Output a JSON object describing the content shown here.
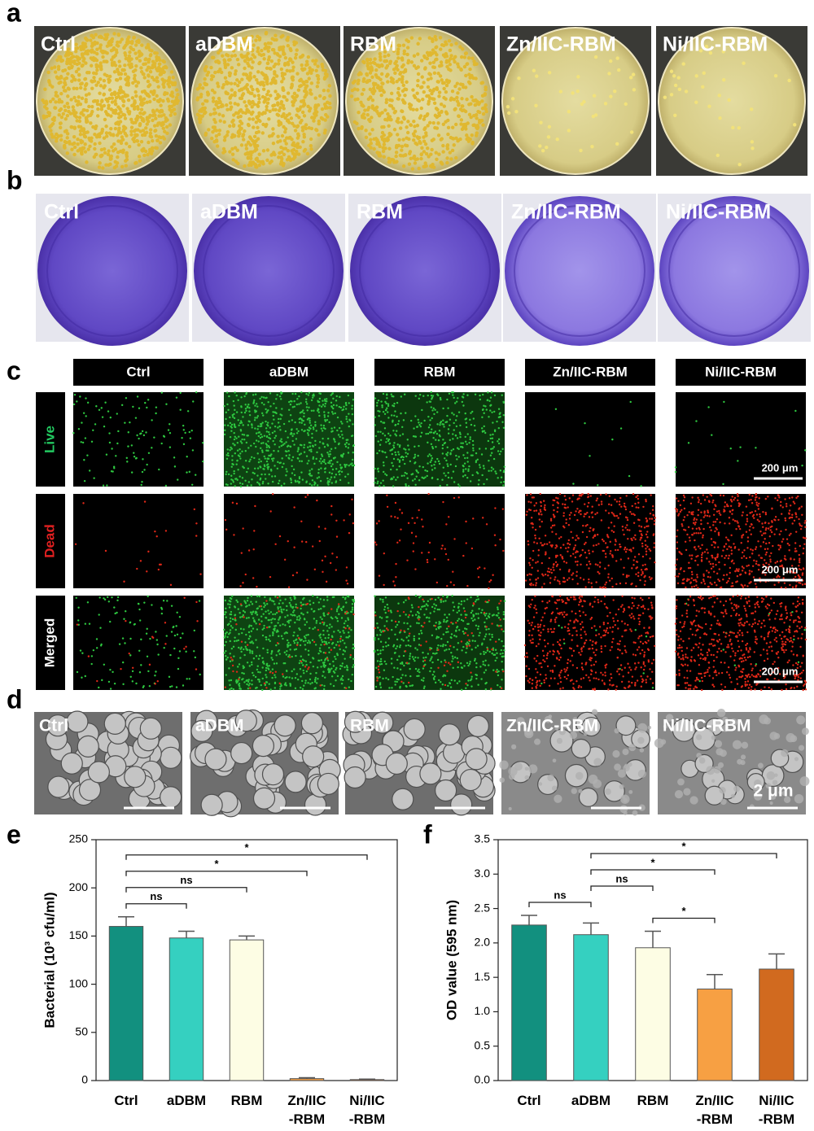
{
  "panels": {
    "a": {
      "label": "a",
      "groups": [
        "Ctrl",
        "aDBM",
        "RBM",
        "Zn/IIC-RBM",
        "Ni/IIC-RBM"
      ]
    },
    "b": {
      "label": "b",
      "groups": [
        "Ctrl",
        "aDBM",
        "RBM",
        "Zn/IIC-RBM",
        "Ni/IIC-RBM"
      ]
    },
    "c": {
      "label": "c",
      "groups": [
        "Ctrl",
        "aDBM",
        "RBM",
        "Zn/IIC-RBM",
        "Ni/IIC-RBM"
      ],
      "rows": [
        "Live",
        "Dead",
        "Merged"
      ],
      "scale_bar": "200 μm"
    },
    "d": {
      "label": "d",
      "groups": [
        "Ctrl",
        "aDBM",
        "RBM",
        "Zn/IIC-RBM",
        "Ni/IIC-RBM"
      ],
      "scale_bar": "2 μm"
    }
  },
  "chart_data": [
    {
      "type": "bar",
      "panel_label": "e",
      "ylabel": "Bacterial (10³ cfu/ml)",
      "categories": [
        "Ctrl",
        "aDBM",
        "RBM",
        "Zn/IIC\n-RBM",
        "Ni/IIC\n-RBM"
      ],
      "values": [
        160,
        148,
        146,
        2,
        1
      ],
      "errors": [
        10,
        7,
        4,
        1,
        0.5
      ],
      "colors": [
        "#12907f",
        "#35d0c0",
        "#fdfde4",
        "#f7a043",
        "#d16a1f"
      ],
      "ylim": [
        0,
        250
      ],
      "yticks": [
        0,
        50,
        100,
        150,
        200,
        250
      ],
      "significance": [
        {
          "from": 0,
          "to": 1,
          "label": "ns"
        },
        {
          "from": 0,
          "to": 2,
          "label": "ns"
        },
        {
          "from": 0,
          "to": 3,
          "label": "*"
        },
        {
          "from": 0,
          "to": 4,
          "label": "*"
        }
      ]
    },
    {
      "type": "bar",
      "panel_label": "f",
      "ylabel": "OD value (595 nm)",
      "categories": [
        "Ctrl",
        "aDBM",
        "RBM",
        "Zn/IIC\n-RBM",
        "Ni/IIC\n-RBM"
      ],
      "values": [
        2.26,
        2.12,
        1.93,
        1.33,
        1.62
      ],
      "errors": [
        0.14,
        0.17,
        0.24,
        0.21,
        0.22
      ],
      "colors": [
        "#12907f",
        "#35d0c0",
        "#fdfde4",
        "#f7a043",
        "#d16a1f"
      ],
      "ylim": [
        0,
        3.5
      ],
      "yticks": [
        {
          "value": 0,
          "label": "0.0"
        },
        0.5,
        {
          "value": 1,
          "label": "1.0"
        },
        1.5,
        {
          "value": 2,
          "label": "2.0"
        },
        2.5,
        {
          "value": 3,
          "label": "3.0"
        },
        3.5
      ],
      "significance": [
        {
          "from": 0,
          "to": 1,
          "label": "ns"
        },
        {
          "from": 2,
          "to": 3,
          "label": "*"
        },
        {
          "from": 1,
          "to": 2,
          "label": "ns"
        },
        {
          "from": 1,
          "to": 3,
          "label": "*"
        },
        {
          "from": 1,
          "to": 4,
          "label": "*"
        }
      ]
    }
  ]
}
